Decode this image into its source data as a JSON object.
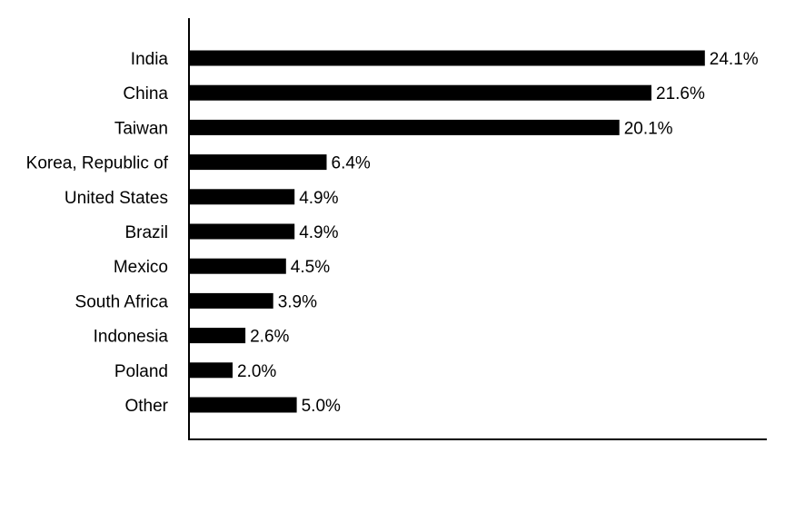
{
  "chart_data": {
    "type": "bar",
    "orientation": "horizontal",
    "categories": [
      "India",
      "China",
      "Taiwan",
      "Korea, Republic of",
      "United States",
      "Brazil",
      "Mexico",
      "South Africa",
      "Indonesia",
      "Poland",
      "Other"
    ],
    "values": [
      24.1,
      21.6,
      20.1,
      6.4,
      4.9,
      4.9,
      4.5,
      3.9,
      2.6,
      2.0,
      5.0
    ],
    "value_labels": [
      "24.1%",
      "21.6%",
      "20.1%",
      "6.4%",
      "4.9%",
      "4.9%",
      "4.5%",
      "3.9%",
      "2.6%",
      "2.0%",
      "5.0%"
    ],
    "title": "",
    "xlabel": "",
    "ylabel": "",
    "xlim": [
      0,
      27
    ],
    "grid": false,
    "legend": "none",
    "bar_color": "#000000",
    "axis_color": "#000000"
  }
}
